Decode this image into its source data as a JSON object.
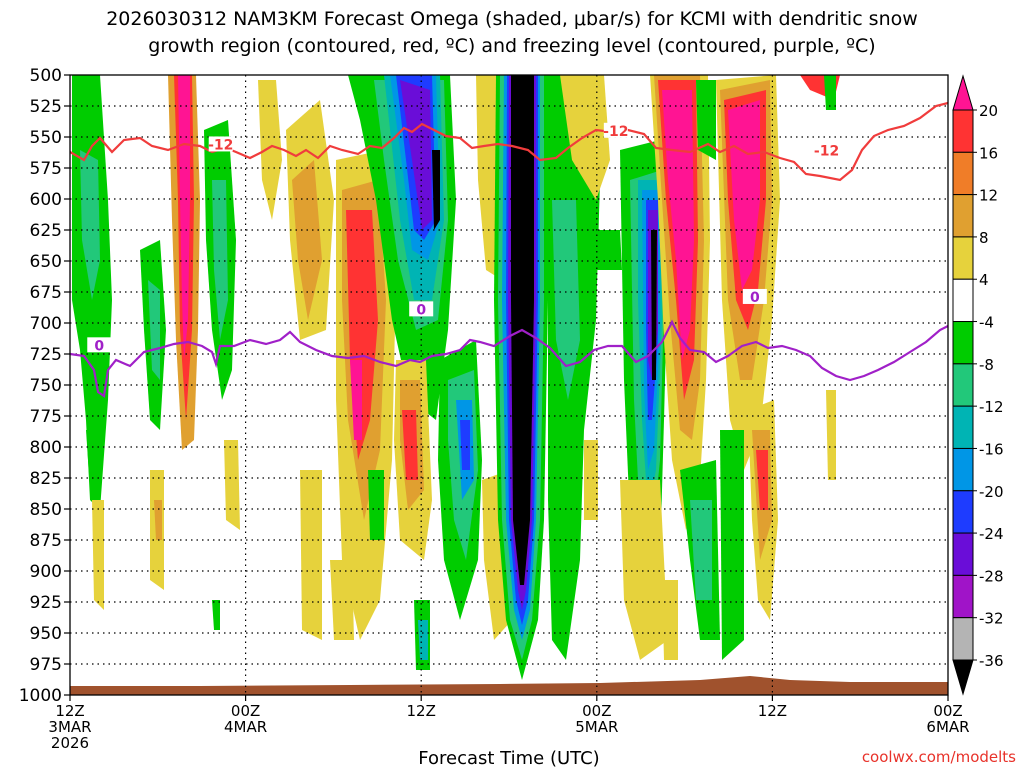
{
  "title_line1": "2026030312 NAM3KM Forecast Omega (shaded, μbar/s) for KCMI with dendritic snow",
  "title_line2": "growth region (contoured, red, ºC) and freezing level (contoured, purple, ºC)",
  "xlabel": "Forecast Time (UTC)",
  "credit": "coolwx.com/modelts",
  "chart_data": {
    "type": "heatmap",
    "x_ticks": [
      {
        "hour": 0,
        "lines": [
          "12Z",
          "3MAR",
          "2026"
        ]
      },
      {
        "hour": 12,
        "lines": [
          "00Z",
          "4MAR"
        ]
      },
      {
        "hour": 24,
        "lines": [
          "12Z"
        ]
      },
      {
        "hour": 36,
        "lines": [
          "00Z",
          "5MAR"
        ]
      },
      {
        "hour": 48,
        "lines": [
          "12Z"
        ]
      },
      {
        "hour": 60,
        "lines": [
          "00Z",
          "6MAR"
        ]
      }
    ],
    "xlim": [
      0,
      60
    ],
    "y_ticks": [
      500,
      525,
      550,
      575,
      600,
      625,
      650,
      675,
      700,
      725,
      750,
      775,
      800,
      825,
      850,
      875,
      900,
      925,
      950,
      975,
      1000
    ],
    "ylim": [
      500,
      1000
    ],
    "colorbar": {
      "levels": [
        "20",
        "16",
        "12",
        "8",
        "4",
        "-4",
        "-8",
        "-12",
        "-16",
        "-20",
        "-24",
        "-28",
        "-32",
        "-36"
      ],
      "colors": [
        "#ff1493",
        "#ff3333",
        "#f07d28",
        "#e0a030",
        "#e6d23c",
        "#ffffff",
        "#00cc00",
        "#22c87a",
        "#00b4b4",
        "#0096e6",
        "#1e3cff",
        "#6a0dd8",
        "#a014c8",
        "#b4b4b4",
        "#000000"
      ]
    },
    "contours": [
      {
        "label": "-12",
        "color": "#f03c3c",
        "label_positions": [
          [
            10.3,
            556
          ],
          [
            37.3,
            545
          ],
          [
            51.7,
            561
          ]
        ]
      },
      {
        "label": "0",
        "color": "#a020c8",
        "label_positions": [
          [
            2.0,
            718
          ],
          [
            24.0,
            689
          ],
          [
            46.8,
            679
          ]
        ]
      }
    ]
  }
}
